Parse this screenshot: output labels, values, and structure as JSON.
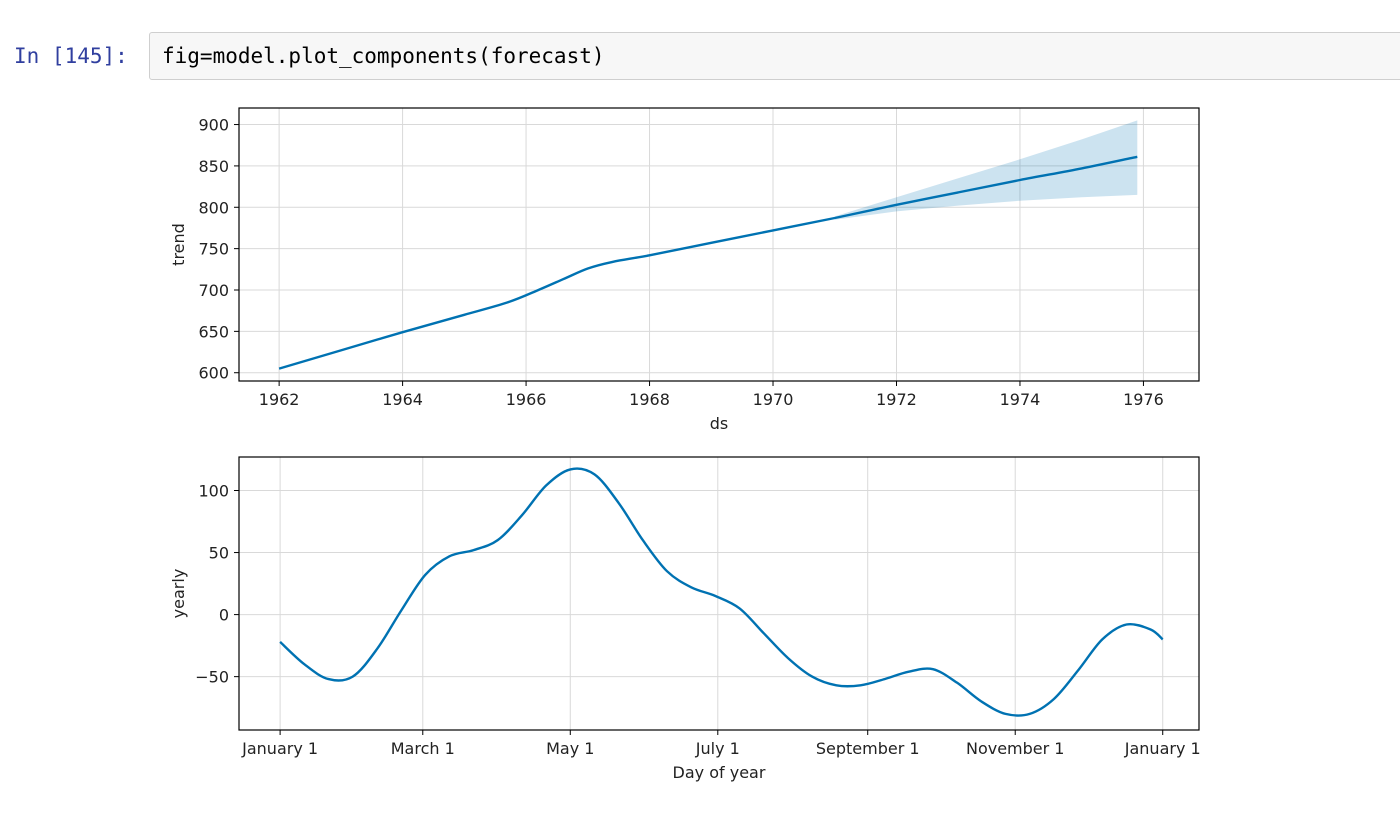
{
  "cell": {
    "prompt": "In [145]:",
    "code": "fig=model.plot_components(forecast)"
  },
  "colors": {
    "line": "#0072b2",
    "band": "#0072b2",
    "grid": "#d9d9d9",
    "prompt": "#303f9f"
  },
  "chart_data": [
    {
      "type": "line",
      "title": "",
      "xlabel": "ds",
      "ylabel": "trend",
      "xlim": [
        1961.35,
        1976.9
      ],
      "ylim": [
        590,
        920
      ],
      "xticks": [
        1962,
        1964,
        1966,
        1968,
        1970,
        1972,
        1974,
        1976
      ],
      "xtick_labels": [
        "1962",
        "1964",
        "1966",
        "1968",
        "1970",
        "1972",
        "1974",
        "1976"
      ],
      "yticks": [
        600,
        650,
        700,
        750,
        800,
        850,
        900
      ],
      "ytick_labels": [
        "600",
        "650",
        "700",
        "750",
        "800",
        "850",
        "900"
      ],
      "grid": true,
      "series": [
        {
          "x": [
            1962,
            1963,
            1964,
            1965,
            1965.7,
            1966.2,
            1966.6,
            1967,
            1967.4,
            1968,
            1969,
            1970,
            1971,
            1972,
            1973,
            1974,
            1975,
            1975.9
          ],
          "y": [
            605,
            627,
            649,
            670,
            685,
            700,
            713,
            726,
            734,
            742,
            757,
            772,
            787,
            803,
            818,
            833,
            847,
            861
          ],
          "band_x": [
            1971,
            1972,
            1973,
            1974,
            1975,
            1975.9
          ],
          "band_lower": [
            785,
            795,
            802,
            808,
            812,
            815
          ],
          "band_upper": [
            789,
            812,
            835,
            858,
            882,
            905
          ]
        }
      ]
    },
    {
      "type": "line",
      "title": "",
      "xlabel": "Day of year",
      "ylabel": "yearly",
      "xlim": [
        -17,
        380
      ],
      "ylim": [
        -93,
        127
      ],
      "xticks": [
        0,
        59,
        120,
        181,
        243,
        304,
        365
      ],
      "xtick_labels": [
        "January 1",
        "March 1",
        "May 1",
        "July 1",
        "September 1",
        "November 1",
        "January 1"
      ],
      "yticks": [
        -50,
        0,
        50,
        100
      ],
      "ytick_labels": [
        "−50",
        "0",
        "50",
        "100"
      ],
      "grid": true,
      "series": [
        {
          "x": [
            0,
            10,
            20,
            30,
            40,
            50,
            60,
            70,
            80,
            90,
            100,
            110,
            120,
            130,
            140,
            150,
            160,
            170,
            180,
            190,
            200,
            210,
            220,
            230,
            240,
            250,
            260,
            270,
            280,
            290,
            300,
            310,
            320,
            330,
            340,
            350,
            360,
            365
          ],
          "y": [
            -22,
            -40,
            -52,
            -50,
            -28,
            3,
            32,
            47,
            52,
            60,
            80,
            104,
            117,
            113,
            90,
            60,
            35,
            22,
            15,
            5,
            -15,
            -35,
            -50,
            -57,
            -57,
            -52,
            -46,
            -44,
            -55,
            -70,
            -80,
            -80,
            -68,
            -45,
            -20,
            -8,
            -12,
            -20
          ]
        }
      ]
    }
  ]
}
